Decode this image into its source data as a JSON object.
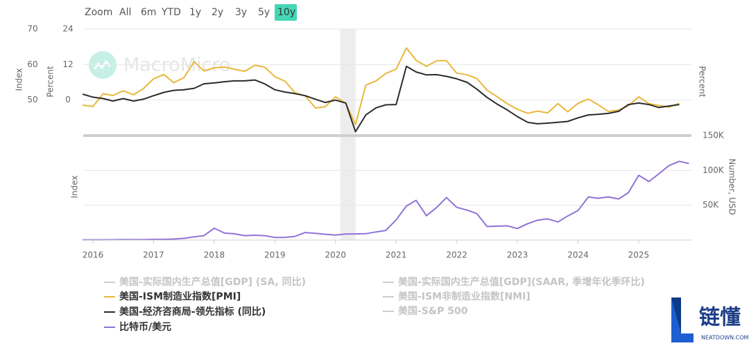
{
  "zoom": {
    "label": "Zoom",
    "options": [
      "All",
      "6m",
      "YTD",
      "1y",
      "2y",
      "3y",
      "5y",
      "10y"
    ],
    "selected": 7
  },
  "watermark": "MacroMicro",
  "logo": {
    "text": "链懂",
    "subtext": "NEATDOWN.COM"
  },
  "chart_data": {
    "type": "line",
    "grid": true,
    "x": [
      2015.83,
      2016,
      2016.17,
      2016.33,
      2016.5,
      2016.67,
      2016.83,
      2017,
      2017.17,
      2017.33,
      2017.5,
      2017.67,
      2017.83,
      2018,
      2018.17,
      2018.33,
      2018.5,
      2018.67,
      2018.83,
      2019,
      2019.17,
      2019.33,
      2019.5,
      2019.67,
      2019.83,
      2020,
      2020.17,
      2020.33,
      2020.5,
      2020.67,
      2020.83,
      2021,
      2021.17,
      2021.33,
      2021.5,
      2021.67,
      2021.83,
      2022,
      2022.17,
      2022.33,
      2022.5,
      2022.67,
      2022.83,
      2023,
      2023.17,
      2023.33,
      2023.5,
      2023.67,
      2023.83,
      2024,
      2024.17,
      2024.33,
      2024.5,
      2024.67,
      2024.83,
      2025,
      2025.17,
      2025.33,
      2025.5,
      2025.67,
      2025.83
    ],
    "xlim": [
      2015.84,
      2025.87
    ],
    "xticks": [
      2016,
      2017,
      2018,
      2019,
      2020,
      2021,
      2022,
      2023,
      2024,
      2025
    ],
    "shaded": [
      2020.08,
      2020.33
    ],
    "y_label": "Index",
    "ylim": [
      40,
      70
    ],
    "yticks": [
      50,
      60,
      70
    ],
    "y2_label": "Percent",
    "y2lim": [
      -12,
      24
    ],
    "y2ticks": [
      0,
      12,
      24
    ],
    "y2_right_label": "Percent",
    "y3_left_label": "Index",
    "y3_label": "Number, USD",
    "y3lim": [
      0,
      150000
    ],
    "y3ticks": [
      {
        "value": 50000,
        "label": "50K"
      },
      {
        "value": 100000,
        "label": "100K"
      },
      {
        "value": 150000,
        "label": "150K"
      }
    ],
    "series": [
      {
        "name": "美国-ISM制造业指数[PMI]",
        "color": "#e9b83a",
        "axis": "y",
        "values": [
          48.6,
          48.2,
          51.8,
          51.3,
          52.6,
          51.5,
          53.2,
          56.0,
          57.2,
          54.9,
          56.3,
          60.8,
          58.2,
          59.1,
          59.3,
          58.7,
          58.1,
          59.8,
          59.3,
          56.6,
          55.3,
          52.1,
          51.2,
          47.8,
          48.1,
          50.9,
          49.1,
          43.1,
          54.2,
          55.4,
          57.5,
          58.7,
          64.7,
          61.2,
          59.5,
          61.1,
          61.1,
          57.6,
          57.1,
          56.1,
          52.8,
          50.9,
          49.0,
          47.4,
          46.3,
          46.9,
          46.4,
          49.0,
          46.7,
          49.1,
          50.3,
          48.7,
          46.8,
          47.2,
          48.4,
          50.9,
          49.0,
          48.5,
          48.0,
          49.1,
          null
        ]
      },
      {
        "name": "美国-经济咨商局-领先指标 (同比)",
        "color": "#2b2b2b",
        "axis": "y2",
        "values": [
          2.0,
          1.0,
          0.5,
          -0.3,
          0.5,
          -0.3,
          0.3,
          1.5,
          2.6,
          3.3,
          3.5,
          4.0,
          5.5,
          5.8,
          6.2,
          6.5,
          6.5,
          6.8,
          5.5,
          3.5,
          2.7,
          2.2,
          1.5,
          0.3,
          -0.8,
          0.0,
          -1.0,
          -10.7,
          -5.0,
          -2.6,
          -1.6,
          -1.5,
          11.4,
          9.5,
          8.5,
          8.6,
          8.0,
          7.2,
          6.0,
          3.7,
          0.9,
          -1.4,
          -3.3,
          -5.6,
          -7.5,
          -8.0,
          -7.8,
          -7.5,
          -7.2,
          -6.0,
          -5.0,
          -4.8,
          -4.5,
          -3.8,
          -1.5,
          -1.0,
          -1.5,
          -2.5,
          -2.0,
          -1.5,
          null
        ]
      },
      {
        "name": "比特币/美元",
        "color": "#8f72d6",
        "axis": "y3",
        "values": [
          350,
          430,
          420,
          450,
          670,
          600,
          700,
          970,
          1100,
          1500,
          2500,
          4600,
          6400,
          17000,
          10000,
          9000,
          6400,
          7000,
          6400,
          3800,
          3900,
          5300,
          10800,
          9600,
          8300,
          7200,
          8600,
          8800,
          9100,
          11700,
          13800,
          29000,
          49000,
          57000,
          35000,
          47000,
          61000,
          47000,
          43000,
          38000,
          19500,
          20000,
          20500,
          16600,
          23500,
          28500,
          30400,
          26000,
          34600,
          42500,
          62000,
          60000,
          62000,
          59000,
          68000,
          93000,
          84000,
          95000,
          107000,
          113000,
          110000
        ]
      }
    ],
    "legend_hidden": [
      "美国-实际国内生产总值[GDP] (SA, 同比)",
      "美国-实际国内生产总值[GDP](SAAR, 季增年化季环比)",
      "美国-ISM非制造业指数[NMI]",
      "美国-S&P 500"
    ]
  }
}
